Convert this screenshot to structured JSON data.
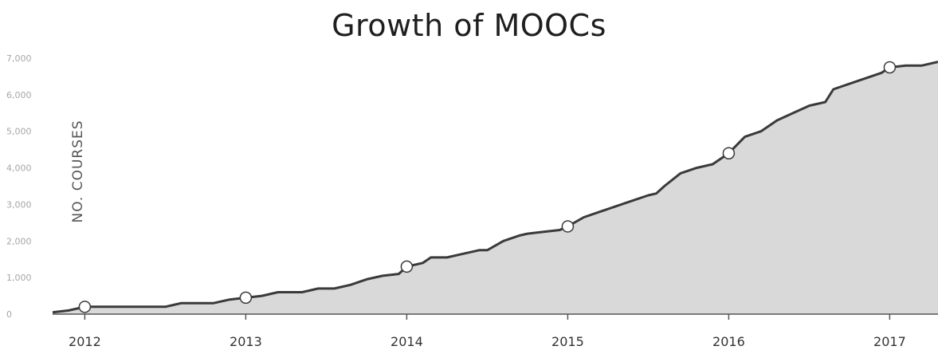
{
  "chart_data": {
    "type": "area",
    "title": "Growth of MOOCs",
    "xlabel": "",
    "ylabel": "NO. COURSES",
    "ylim": [
      0,
      7000
    ],
    "yticks": [
      0,
      1000,
      2000,
      3000,
      4000,
      5000,
      6000,
      7000
    ],
    "ytick_labels": [
      "0",
      "1,000",
      "2,000",
      "3,000",
      "4,000",
      "5,000",
      "6,000",
      "7,000"
    ],
    "xlim": [
      2011.8,
      2017.3
    ],
    "xticks": [
      2012,
      2013,
      2014,
      2015,
      2016,
      2017
    ],
    "xtick_labels": [
      "2012",
      "2013",
      "2014",
      "2015",
      "2016",
      "2017"
    ],
    "grid": false,
    "legend": "none",
    "colors": {
      "line": "#3a3a3a",
      "fill": "#d9d9d9",
      "marker_fill": "#ffffff"
    },
    "series": [
      {
        "x": [
          2011.8,
          2011.9,
          2012.0,
          2012.1,
          2012.2,
          2012.35,
          2012.5,
          2012.55,
          2012.6,
          2012.75,
          2012.8,
          2012.9,
          2013.0,
          2013.1,
          2013.2,
          2013.3,
          2013.35,
          2013.45,
          2013.55,
          2013.65,
          2013.75,
          2013.8,
          2013.85,
          2013.95,
          2014.0,
          2014.1,
          2014.15,
          2014.25,
          2014.35,
          2014.45,
          2014.5,
          2014.6,
          2014.7,
          2014.75,
          2014.85,
          2014.95,
          2015.0,
          2015.1,
          2015.2,
          2015.3,
          2015.4,
          2015.5,
          2015.55,
          2015.6,
          2015.7,
          2015.8,
          2015.9,
          2016.0,
          2016.1,
          2016.2,
          2016.3,
          2016.4,
          2016.5,
          2016.6,
          2016.65,
          2016.75,
          2016.85,
          2016.95,
          2017.0,
          2017.1,
          2017.2,
          2017.3
        ],
        "y": [
          50,
          100,
          200,
          200,
          200,
          200,
          200,
          250,
          300,
          300,
          300,
          400,
          450,
          500,
          600,
          600,
          600,
          700,
          700,
          800,
          950,
          1000,
          1050,
          1100,
          1300,
          1400,
          1550,
          1550,
          1650,
          1750,
          1750,
          2000,
          2150,
          2200,
          2250,
          2300,
          2400,
          2650,
          2800,
          2950,
          3100,
          3250,
          3300,
          3500,
          3850,
          4000,
          4100,
          4400,
          4850,
          5000,
          5300,
          5500,
          5700,
          5800,
          6150,
          6300,
          6450,
          6600,
          6750,
          6800,
          6800,
          6900
        ]
      }
    ],
    "markers": [
      {
        "x": 2012.0,
        "y": 200
      },
      {
        "x": 2013.0,
        "y": 450
      },
      {
        "x": 2014.0,
        "y": 1300
      },
      {
        "x": 2015.0,
        "y": 2400
      },
      {
        "x": 2016.0,
        "y": 4400
      },
      {
        "x": 2017.0,
        "y": 6750
      }
    ]
  }
}
